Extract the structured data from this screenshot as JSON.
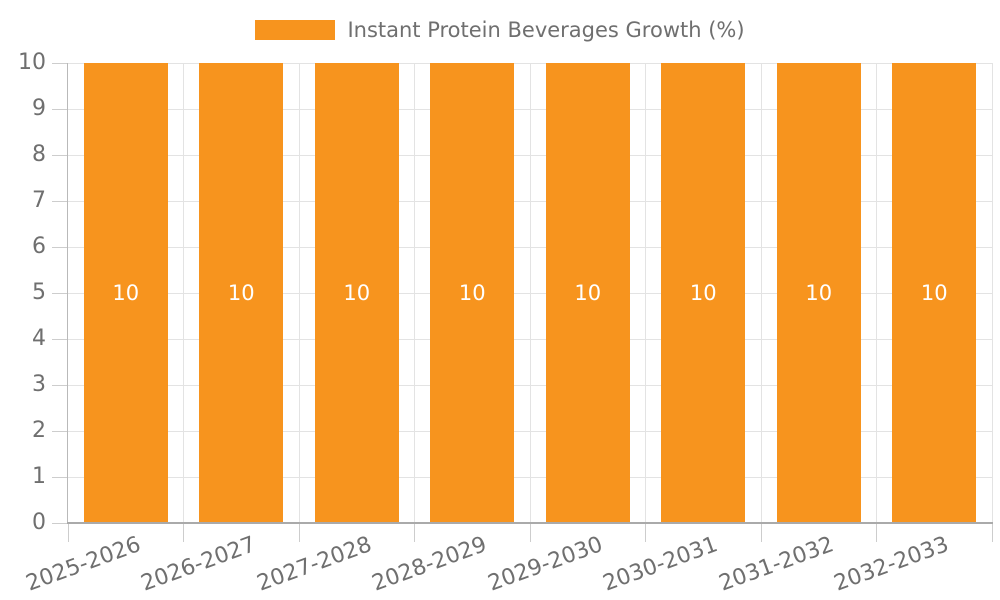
{
  "legend": {
    "label": "Instant Protein Beverages Growth (%)"
  },
  "colors": {
    "bar": "#F7941E",
    "value_label": "#FFFFFF",
    "axis_text": "#6F6F6F",
    "gridline": "#E3E3E3",
    "tick": "#CDCDCD",
    "x_axis_line": "#AAAAAA",
    "y_axis_line": "#B9B9B9",
    "background": "#FFFFFF"
  },
  "chart_data": {
    "type": "bar",
    "title": "",
    "xlabel": "",
    "ylabel": "",
    "categories": [
      "2025-2026",
      "2026-2027",
      "2027-2028",
      "2028-2029",
      "2029-2030",
      "2030-2031",
      "2031-2032",
      "2032-2033"
    ],
    "series": [
      {
        "name": "Instant Protein Beverages Growth (%)",
        "color": "#F7941E",
        "values": [
          10,
          10,
          10,
          10,
          10,
          10,
          10,
          10
        ]
      }
    ],
    "value_labels": [
      "10",
      "10",
      "10",
      "10",
      "10",
      "10",
      "10",
      "10"
    ],
    "ylim": [
      0,
      10
    ],
    "yticks": [
      0,
      1,
      2,
      3,
      4,
      5,
      6,
      7,
      8,
      9,
      10
    ],
    "grid": true,
    "legend_position": "top",
    "x_tick_rotation_deg": -20
  }
}
